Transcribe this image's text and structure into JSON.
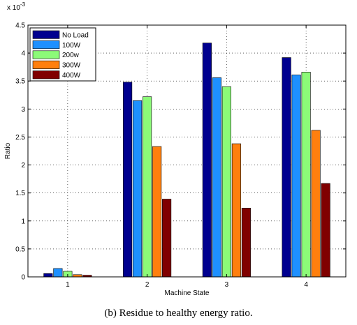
{
  "caption": "(b) Residue to healthy energy ratio.",
  "chart_data": {
    "type": "bar",
    "title": "",
    "xlabel": "Machine State",
    "ylabel": "Ratio",
    "y_multiplier_label": "x 10",
    "y_multiplier_exponent": "-3",
    "categories": [
      "1",
      "2",
      "3",
      "4"
    ],
    "ylim": [
      0,
      4.5
    ],
    "yticks": [
      "0",
      "0.5",
      "1",
      "1.5",
      "2",
      "2.5",
      "3",
      "3.5",
      "4",
      "4.5"
    ],
    "grid": true,
    "legend_position": "top-left",
    "series": [
      {
        "name": "No Load",
        "color": "#00008f",
        "values": [
          0.06,
          3.48,
          4.18,
          3.92
        ]
      },
      {
        "name": "100W",
        "color": "#1e90ff",
        "values": [
          0.15,
          3.15,
          3.56,
          3.61
        ]
      },
      {
        "name": "200w",
        "color": "#8cfa78",
        "values": [
          0.1,
          3.22,
          3.4,
          3.66
        ]
      },
      {
        "name": "300W",
        "color": "#ff7f0e",
        "values": [
          0.04,
          2.33,
          2.38,
          2.62
        ]
      },
      {
        "name": "400W",
        "color": "#800000",
        "values": [
          0.03,
          1.39,
          1.23,
          1.67
        ]
      }
    ]
  }
}
